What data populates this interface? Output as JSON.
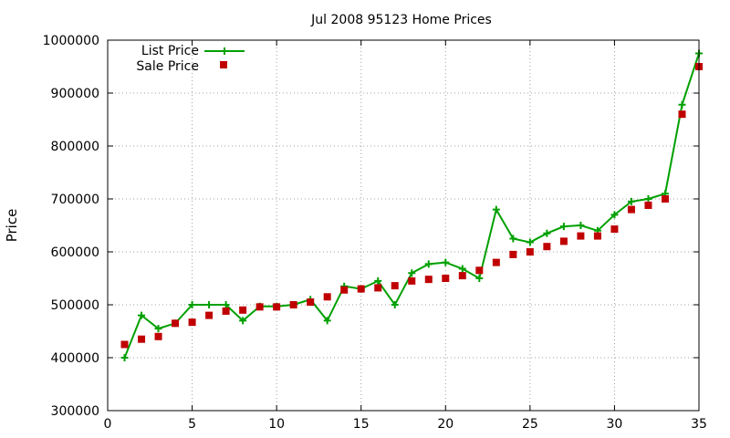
{
  "chart_data": {
    "type": "line",
    "title": "Jul 2008 95123 Home Prices",
    "xlabel": "",
    "ylabel": "Price",
    "xlim": [
      0,
      35
    ],
    "ylim": [
      300000,
      1000000
    ],
    "x_ticks": [
      "0",
      "5",
      "10",
      "15",
      "20",
      "25",
      "30",
      "35"
    ],
    "y_ticks": [
      "300000",
      "400000",
      "500000",
      "600000",
      "700000",
      "800000",
      "900000",
      "1000000"
    ],
    "grid": true,
    "legend_position": "top-left",
    "x": [
      1,
      2,
      3,
      4,
      5,
      6,
      7,
      8,
      9,
      10,
      11,
      12,
      13,
      14,
      15,
      16,
      17,
      18,
      19,
      20,
      21,
      22,
      23,
      24,
      25,
      26,
      27,
      28,
      29,
      30,
      31,
      32,
      33,
      34,
      35
    ],
    "series": [
      {
        "name": "List Price",
        "style": "line+cross",
        "color": "#00a000",
        "values": [
          400000,
          480000,
          455000,
          465000,
          500000,
          500000,
          500000,
          470000,
          497000,
          497000,
          500000,
          510000,
          470000,
          535000,
          530000,
          545000,
          500000,
          560000,
          577000,
          580000,
          568000,
          550000,
          680000,
          625000,
          618000,
          635000,
          648000,
          650000,
          640000,
          670000,
          695000,
          700000,
          710000,
          878000,
          975000
        ]
      },
      {
        "name": "Sale Price",
        "style": "square",
        "color": "#c00000",
        "values": [
          425000,
          435000,
          440000,
          465000,
          467000,
          480000,
          488000,
          490000,
          496000,
          496000,
          500000,
          505000,
          515000,
          528000,
          530000,
          532000,
          536000,
          545000,
          548000,
          550000,
          555000,
          565000,
          580000,
          595000,
          600000,
          610000,
          620000,
          630000,
          630000,
          643000,
          680000,
          688000,
          700000,
          860000,
          950000
        ]
      }
    ]
  }
}
